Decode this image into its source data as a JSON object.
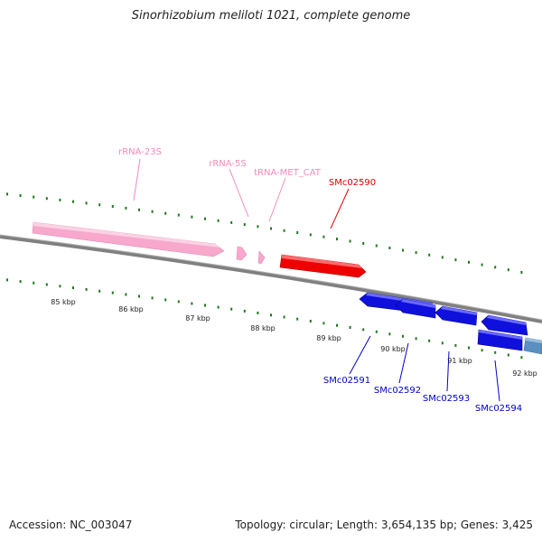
{
  "title": "Sinorhizobium meliloti 1021, complete genome",
  "footer": {
    "accession": "Accession: NC_003047",
    "stats": "Topology: circular; Length: 3,654,135 bp; Genes: 3,425"
  },
  "colors": {
    "rrna": "#f7a8cc",
    "trna": "#f7a8cc",
    "forward_gene": "#ee0000",
    "reverse_gene": "#1010dd",
    "reverse_gene_alt": "#5a8fc0",
    "forward_label": "#dd0000",
    "reverse_label": "#0000cc",
    "rna_label": "#f08cba",
    "genome_line": "#808080",
    "tick_green": "#1f7a1f"
  },
  "scale_labels": [
    "85 kbp",
    "86 kbp",
    "87 kbp",
    "88 kbp",
    "89 kbp",
    "90 kbp",
    "91 kbp",
    "92 kbp"
  ],
  "features_upper": [
    {
      "name": "rRNA-23S",
      "type": "rRNA",
      "strand": "+"
    },
    {
      "name": "rRNA-5S",
      "type": "rRNA",
      "strand": "+"
    },
    {
      "name": "tRNA-MET_CAT",
      "type": "tRNA",
      "strand": "+"
    },
    {
      "name": "SMc02590",
      "type": "gene",
      "strand": "+"
    }
  ],
  "features_lower": [
    {
      "name": "SMc02591",
      "type": "gene",
      "strand": "-"
    },
    {
      "name": "SMc02592",
      "type": "gene",
      "strand": "-"
    },
    {
      "name": "SMc02593",
      "type": "gene",
      "strand": "-"
    },
    {
      "name": "SMc02594",
      "type": "gene",
      "strand": "-"
    }
  ]
}
